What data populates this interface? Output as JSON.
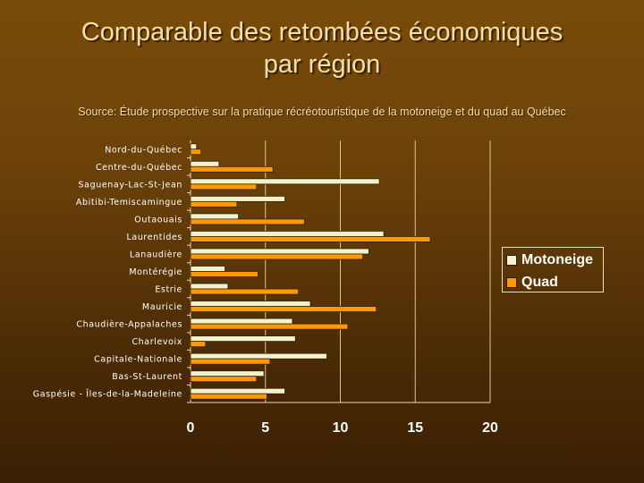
{
  "title_line1": "Comparable des retombées économiques",
  "title_line2": "par région",
  "source": "Source: Étude prospective sur la pratique récréotouristique de la motoneige et du quad au Québec",
  "chart_data": {
    "type": "bar",
    "orientation": "horizontal",
    "title": "Comparable des retombées économiques par région",
    "categories": [
      "Nord-du-Québec",
      "Centre-du-Québec",
      "Saguenay-Lac-St-Jean",
      "Abitibi-Temiscamingue",
      "Outaouais",
      "Laurentides",
      "Lanaudière",
      "Montérégie",
      "Estrie",
      "Mauricie",
      "Chaudière-Appalaches",
      "Charlevoix",
      "Capitale-Nationale",
      "Bas-St-Laurent",
      "Gaspésie - Îles-de-la-Madeleine"
    ],
    "series": [
      {
        "name": "Motoneige",
        "color": "#f2f2cc",
        "values": [
          0.4,
          1.9,
          12.6,
          6.3,
          3.2,
          12.9,
          11.9,
          2.3,
          2.5,
          8.0,
          6.8,
          7.0,
          9.1,
          4.9,
          6.3
        ]
      },
      {
        "name": "Quad",
        "color": "#ff9900",
        "values": [
          0.7,
          5.5,
          4.4,
          3.1,
          7.6,
          16.0,
          11.5,
          4.5,
          7.2,
          12.4,
          10.5,
          1.0,
          5.3,
          4.4,
          5.1
        ]
      }
    ],
    "xlim": [
      0,
      20
    ],
    "xticks": [
      "0",
      "5",
      "10",
      "15",
      "20"
    ],
    "grid": true,
    "legend_position": "right"
  }
}
